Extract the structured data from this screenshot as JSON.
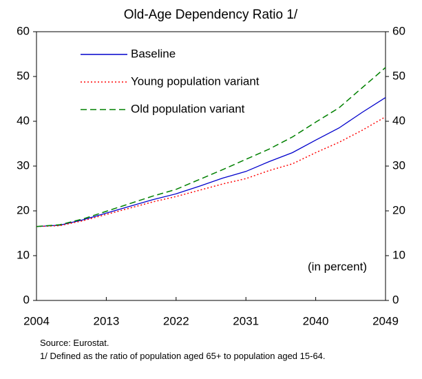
{
  "chart_data": {
    "type": "line",
    "title": "Old-Age Dependency Ratio 1/",
    "annotation": "(in percent)",
    "x": [
      2004,
      2007,
      2010,
      2013,
      2016,
      2019,
      2022,
      2025,
      2028,
      2031,
      2034,
      2037,
      2040,
      2043,
      2046,
      2049
    ],
    "series": [
      {
        "name": "Baseline",
        "color": "#0000cc",
        "style": "solid",
        "values": [
          16.5,
          16.8,
          18.0,
          19.5,
          21.0,
          22.5,
          23.8,
          25.5,
          27.3,
          28.8,
          31.0,
          33.0,
          35.8,
          38.5,
          42.0,
          45.3
        ]
      },
      {
        "name": "Young population variant",
        "color": "#ff0000",
        "style": "dotted",
        "values": [
          16.5,
          16.7,
          17.8,
          19.2,
          20.6,
          22.0,
          23.2,
          24.6,
          26.0,
          27.2,
          29.0,
          30.5,
          33.0,
          35.3,
          38.0,
          41.0
        ]
      },
      {
        "name": "Old population variant",
        "color": "#008000",
        "style": "dashed",
        "values": [
          16.5,
          16.9,
          18.2,
          19.9,
          21.6,
          23.3,
          24.8,
          27.0,
          29.2,
          31.5,
          33.8,
          36.5,
          39.8,
          43.0,
          47.5,
          52.0
        ]
      }
    ],
    "xlim": [
      2004,
      2049
    ],
    "xticks": [
      2004,
      2013,
      2022,
      2031,
      2040,
      2049
    ],
    "ylim": [
      0,
      60
    ],
    "yticks": [
      0,
      10,
      20,
      30,
      40,
      50,
      60
    ],
    "y2lim": [
      0,
      60
    ],
    "y2ticks": [
      0,
      10,
      20,
      30,
      40,
      50,
      60
    ],
    "grid": false,
    "source": "Source: Eurostat.",
    "footnote": "1/ Defined as the ratio of population aged 65+ to population aged 15-64."
  }
}
